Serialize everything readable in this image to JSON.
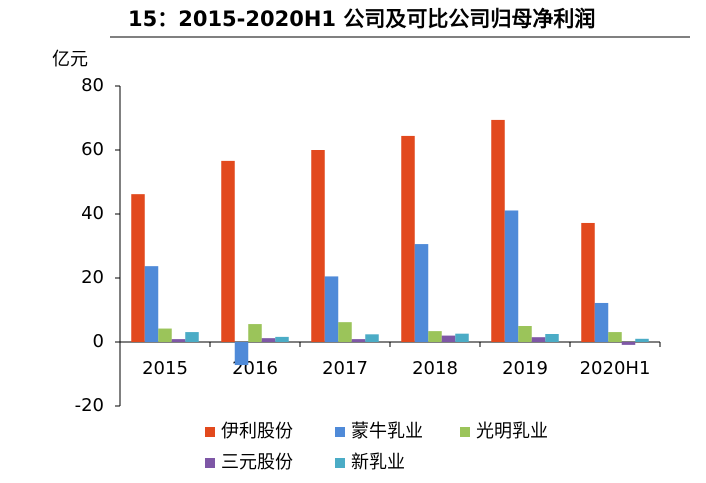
{
  "chart_data": {
    "type": "bar",
    "title": "15：2015-2020H1 公司及可比公司归母净利润",
    "y_label": "亿元",
    "categories": [
      "2015",
      "2016",
      "2017",
      "2018",
      "2019",
      "2020H1"
    ],
    "series": [
      {
        "name": "伊利股份",
        "color": "#e2491d",
        "values": [
          46.2,
          56.6,
          60.0,
          64.4,
          69.4,
          37.2
        ]
      },
      {
        "name": "蒙牛乳业",
        "color": "#4f8ad8",
        "values": [
          23.7,
          -7.2,
          20.5,
          30.6,
          41.1,
          12.2
        ]
      },
      {
        "name": "光明乳业",
        "color": "#9bc45a",
        "values": [
          4.2,
          5.6,
          6.2,
          3.4,
          5.0,
          3.1
        ]
      },
      {
        "name": "三元股份",
        "color": "#7e57a6",
        "values": [
          0.9,
          1.2,
          0.9,
          2.0,
          1.5,
          -0.9
        ]
      },
      {
        "name": "新乳业",
        "color": "#4bacc6",
        "values": [
          3.1,
          1.6,
          2.4,
          2.6,
          2.5,
          1.0
        ]
      }
    ],
    "ylim": [
      -20,
      80
    ],
    "yticks": [
      -20,
      0,
      20,
      40,
      60,
      80
    ],
    "grid": false
  }
}
